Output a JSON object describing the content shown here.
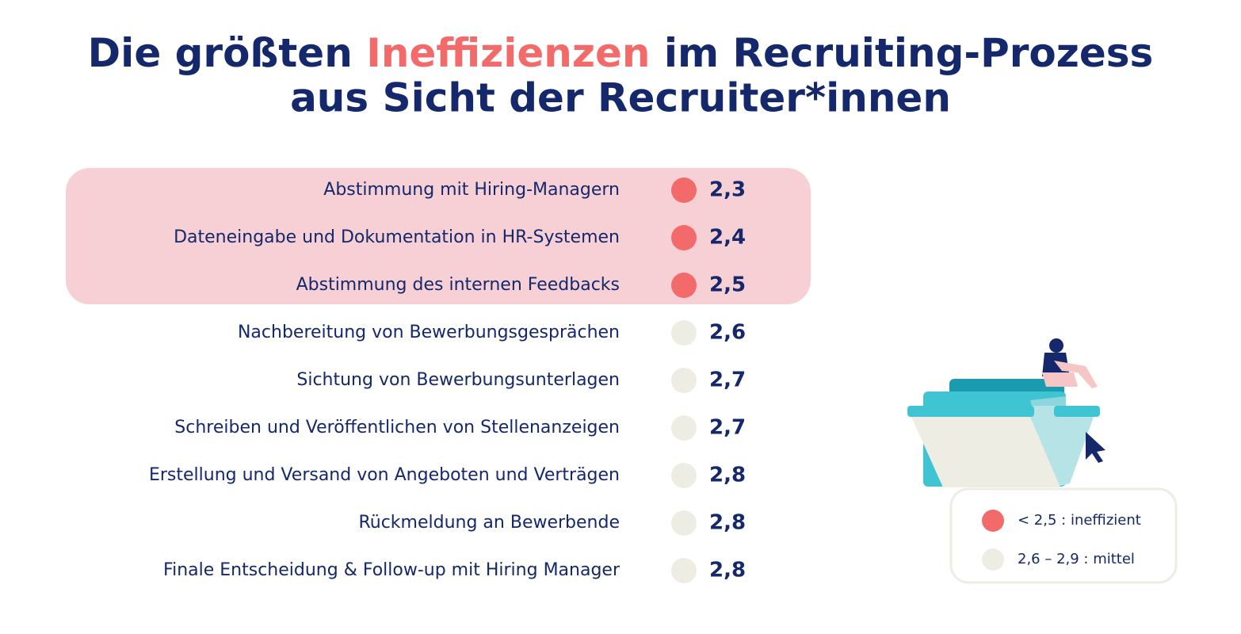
{
  "header": {
    "title_parts": [
      "Die größten ",
      "Ineffizienzen",
      " im Recruiting-Prozess"
    ],
    "title_line2": "aus Sicht der Recruiter*innen"
  },
  "rows": [
    {
      "label": "Abstimmung mit Hiring-Managern",
      "value": "2,3",
      "color": "#f26a6a"
    },
    {
      "label": "Dateneingabe und Dokumentation in HR-Systemen",
      "value": "2,4",
      "color": "#f26a6a"
    },
    {
      "label": "Abstimmung des internen Feedbacks",
      "value": "2,5",
      "color": "#f26a6a"
    },
    {
      "label": "Nachbereitung von Bewerbungsgesprächen",
      "value": "2,6",
      "color": "#eeede3"
    },
    {
      "label": "Sichtung von Bewerbungsunterlagen",
      "value": "2,7",
      "color": "#eeede3"
    },
    {
      "label": "Schreiben und Veröffentlichen von Stellenanzeigen",
      "value": "2,7",
      "color": "#eeede3"
    },
    {
      "label": "Erstellung und Versand von Angeboten und Verträgen",
      "value": "2,8",
      "color": "#eeede3"
    },
    {
      "label": "Rückmeldung an Bewerbende",
      "value": "2,8",
      "color": "#eeede3"
    },
    {
      "label": "Finale Entscheidung & Follow-up mit Hiring Manager",
      "value": "2,8",
      "color": "#eeede3"
    }
  ],
  "legend": [
    {
      "label": "< 2,5 : ineffizient",
      "color": "#f26a6a"
    },
    {
      "label": "2,6 – 2,9 : mittel",
      "color": "#eeede3"
    }
  ]
}
